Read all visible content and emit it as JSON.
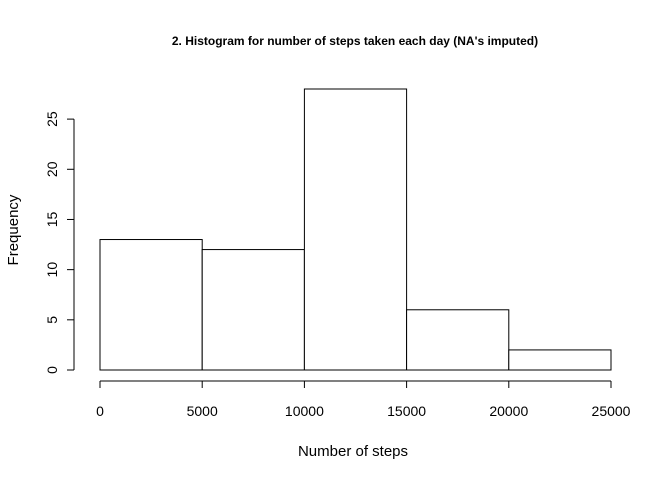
{
  "chart_data": {
    "type": "bar",
    "title": "2. Histogram for number of steps taken each day (NA's imputed)",
    "xlabel": "Number of steps",
    "ylabel": "Frequency",
    "bins": [
      {
        "from": 0,
        "to": 5000,
        "count": 13
      },
      {
        "from": 5000,
        "to": 10000,
        "count": 12
      },
      {
        "from": 10000,
        "to": 15000,
        "count": 28
      },
      {
        "from": 15000,
        "to": 20000,
        "count": 6
      },
      {
        "from": 20000,
        "to": 25000,
        "count": 2
      }
    ],
    "xlim": [
      0,
      25000
    ],
    "ylim": [
      0,
      28
    ],
    "x_ticks": [
      0,
      5000,
      10000,
      15000,
      20000,
      25000
    ],
    "y_ticks": [
      0,
      5,
      10,
      15,
      20,
      25
    ],
    "grid": false,
    "bar_fill": "#ffffff",
    "bar_stroke": "#000000"
  }
}
